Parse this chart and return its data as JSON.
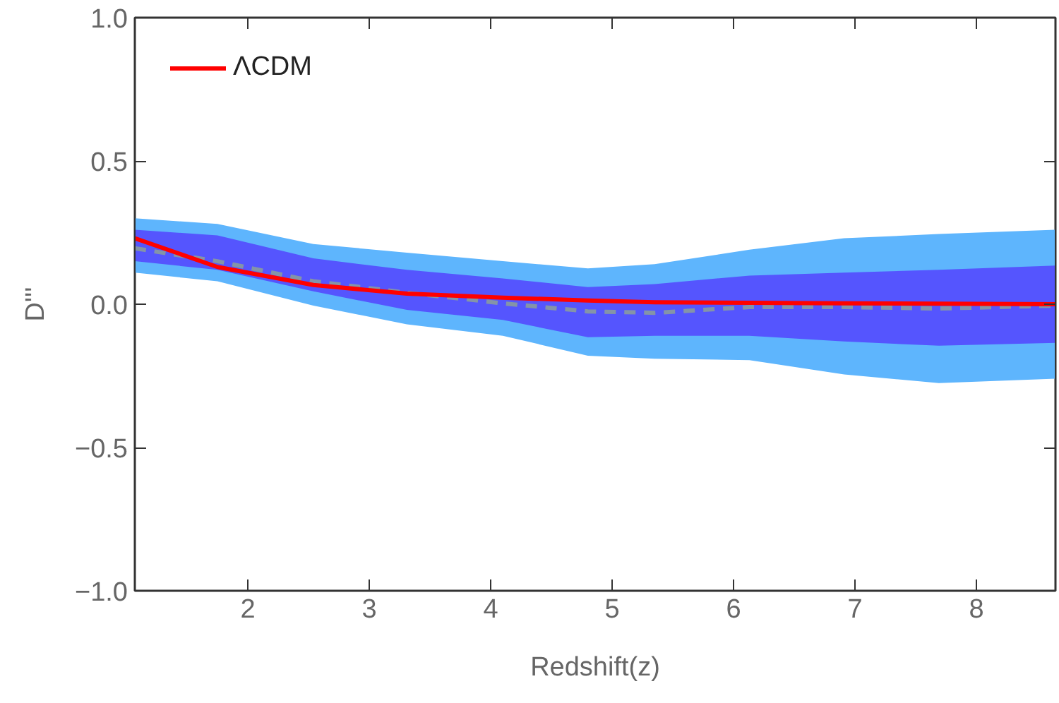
{
  "chart_data": {
    "type": "line",
    "xlabel": "Redshift(z)",
    "ylabel": "D'''",
    "x": [
      1.07,
      1.75,
      2.54,
      3.31,
      4.1,
      4.8,
      5.35,
      6.13,
      6.91,
      7.69,
      8.65
    ],
    "xlim": [
      1.07,
      8.65
    ],
    "ylim": [
      -1.0,
      1.0
    ],
    "xticks": [
      2,
      3,
      4,
      5,
      6,
      7,
      8
    ],
    "yticks": [
      {
        "value": -1.0,
        "label": "−1.0"
      },
      {
        "value": -0.5,
        "label": "−0.5"
      },
      {
        "value": 0.0,
        "label": "0.0"
      },
      {
        "value": 0.5,
        "label": "0.5"
      },
      {
        "value": 1.0,
        "label": "1.0"
      }
    ],
    "series": [
      {
        "type": "line",
        "color": "#5eb5fd",
        "values": [
          null,
          null,
          null,
          null,
          null,
          null,
          null,
          null,
          null,
          null,
          null
        ],
        "lower": [
          0.11,
          0.08,
          -0.005,
          -0.07,
          -0.11,
          -0.18,
          -0.19,
          -0.195,
          -0.245,
          -0.275,
          -0.26
        ],
        "upper": [
          0.3,
          0.28,
          0.21,
          0.18,
          0.15,
          0.125,
          0.14,
          0.19,
          0.23,
          0.245,
          0.26
        ]
      },
      {
        "type": "line",
        "color": "#5555fe",
        "values": [
          null,
          null,
          null,
          null,
          null,
          null,
          null,
          null,
          null,
          null,
          null
        ],
        "lower": [
          0.15,
          0.12,
          0.045,
          -0.02,
          -0.055,
          -0.115,
          -0.11,
          -0.11,
          -0.13,
          -0.145,
          -0.135
        ],
        "upper": [
          0.26,
          0.24,
          0.16,
          0.12,
          0.09,
          0.06,
          0.07,
          0.1,
          0.11,
          0.12,
          0.135
        ]
      },
      {
        "type": "line",
        "color": "#8494a8",
        "line_style": "dashed",
        "values": [
          0.195,
          0.15,
          0.08,
          0.04,
          0.003,
          -0.025,
          -0.03,
          -0.01,
          -0.01,
          -0.015,
          -0.005
        ]
      },
      {
        "type": "line",
        "color": "#ff0000",
        "line_style": "solid",
        "name": "ΛCDM",
        "values": [
          0.23,
          0.13,
          0.067,
          0.037,
          0.023,
          0.013,
          0.007,
          0.005,
          0.003,
          0.002,
          0.0
        ]
      }
    ],
    "legend": "top left",
    "grid": false
  }
}
